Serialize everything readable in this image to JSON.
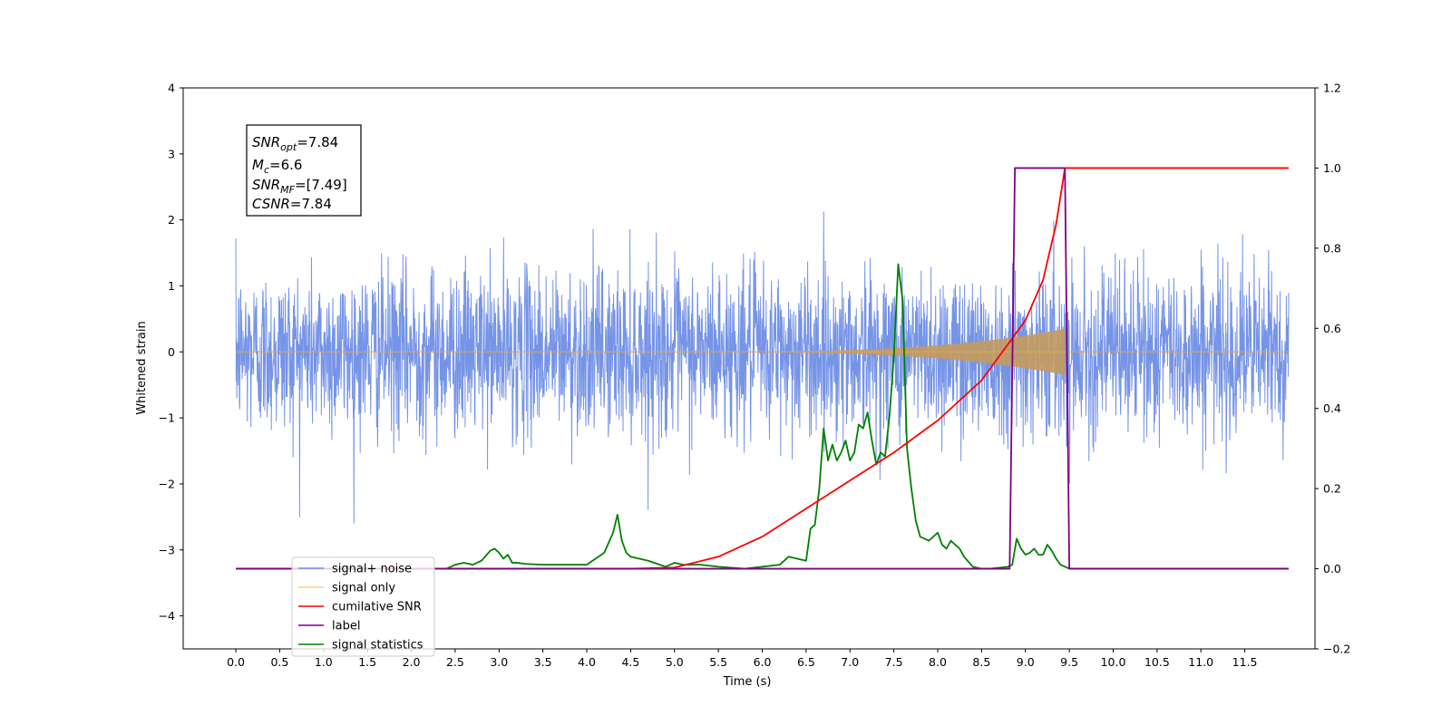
{
  "chart_data": {
    "type": "line",
    "xlabel": "Time (s)",
    "ylabel": "Whitened strain",
    "xlim": [
      -0.6,
      12.3
    ],
    "ylim": [
      -4.5,
      4
    ],
    "ylim_right": [
      -0.2,
      1.2
    ],
    "x_ticks": [
      "0.0",
      "0.5",
      "1.0",
      "1.5",
      "2.0",
      "2.5",
      "3.0",
      "3.5",
      "4.0",
      "4.5",
      "5.0",
      "5.5",
      "6.0",
      "6.5",
      "7.0",
      "7.5",
      "8.0",
      "8.5",
      "9.0",
      "9.5",
      "10.0",
      "10.5",
      "11.0",
      "11.5"
    ],
    "y_ticks_left": [
      "4",
      "3",
      "2",
      "1",
      "0",
      "−1",
      "−2",
      "−3",
      "−4"
    ],
    "y_ticks_right": [
      "1.2",
      "1.0",
      "0.8",
      "0.6",
      "0.4",
      "0.2",
      "0.0",
      "−0.2"
    ],
    "grid": false,
    "legend_placement": "lower-left",
    "annotation": {
      "snr_opt": {
        "base": "SNR",
        "sub": "opt",
        "value": "=7.84"
      },
      "mc": {
        "base": "M",
        "sub": "c",
        "value": "=6.6"
      },
      "snr_mf": {
        "base": "SNR",
        "sub": "MF",
        "value": "=[7.49]"
      },
      "csnr": {
        "base": "CSNR",
        "value": "=7.84"
      }
    },
    "series": [
      {
        "name": "signal+ noise",
        "color": "#6f8ee6",
        "axis": "left",
        "description_x_range": [
          0.0,
          12.0
        ],
        "std": 0.62,
        "max_abs": 3.6
      },
      {
        "name": "signal only",
        "color": "#ffb74a",
        "axis": "left",
        "x_start": 5.2,
        "x_merger": 9.45,
        "peak_amplitude": 0.35
      },
      {
        "name": "cumilative SNR",
        "color": "#ff0000",
        "axis": "right",
        "x": [
          0.0,
          4.5,
          5.0,
          5.5,
          6.0,
          6.5,
          7.0,
          7.5,
          8.0,
          8.5,
          9.0,
          9.2,
          9.35,
          9.45,
          12.0
        ],
        "y": [
          0.0,
          0.0,
          0.003,
          0.03,
          0.08,
          0.15,
          0.22,
          0.29,
          0.37,
          0.47,
          0.62,
          0.72,
          0.86,
          1.0,
          1.0
        ]
      },
      {
        "name": "label",
        "color": "#800080",
        "axis": "right",
        "x": [
          0.0,
          8.82,
          8.88,
          9.45,
          9.5,
          12.0
        ],
        "y": [
          0.0,
          0.0,
          1.0,
          1.0,
          0.0,
          0.0
        ]
      },
      {
        "name": "signal statistics",
        "color": "#008000",
        "axis": "right",
        "x": [
          0.0,
          2.4,
          2.5,
          2.6,
          2.7,
          2.8,
          2.9,
          2.95,
          3.0,
          3.05,
          3.1,
          3.15,
          3.2,
          3.3,
          3.5,
          3.6,
          3.7,
          3.8,
          3.9,
          4.0,
          4.2,
          4.3,
          4.35,
          4.4,
          4.45,
          4.5,
          4.7,
          4.9,
          5.0,
          5.1,
          5.2,
          5.3,
          5.5,
          5.8,
          6.0,
          6.2,
          6.3,
          6.4,
          6.5,
          6.55,
          6.6,
          6.65,
          6.7,
          6.75,
          6.8,
          6.85,
          6.9,
          6.95,
          7.0,
          7.05,
          7.1,
          7.15,
          7.2,
          7.25,
          7.3,
          7.35,
          7.4,
          7.45,
          7.5,
          7.55,
          7.6,
          7.65,
          7.7,
          7.75,
          7.8,
          7.9,
          8.0,
          8.05,
          8.1,
          8.15,
          8.2,
          8.25,
          8.3,
          8.4,
          8.5,
          8.6,
          8.8,
          8.85,
          8.9,
          8.95,
          9.0,
          9.05,
          9.1,
          9.15,
          9.2,
          9.25,
          9.3,
          9.35,
          9.4,
          9.45,
          9.5,
          12.0
        ],
        "y": [
          0.0,
          0.0,
          0.01,
          0.015,
          0.01,
          0.02,
          0.045,
          0.05,
          0.04,
          0.025,
          0.035,
          0.015,
          0.015,
          0.012,
          0.01,
          0.01,
          0.01,
          0.01,
          0.01,
          0.01,
          0.04,
          0.09,
          0.135,
          0.07,
          0.04,
          0.03,
          0.02,
          0.005,
          0.015,
          0.01,
          0.01,
          0.01,
          0.005,
          0.0,
          0.005,
          0.01,
          0.03,
          0.025,
          0.02,
          0.1,
          0.11,
          0.2,
          0.35,
          0.27,
          0.31,
          0.27,
          0.29,
          0.32,
          0.27,
          0.29,
          0.36,
          0.35,
          0.39,
          0.32,
          0.26,
          0.29,
          0.28,
          0.38,
          0.53,
          0.76,
          0.67,
          0.3,
          0.2,
          0.12,
          0.08,
          0.07,
          0.09,
          0.06,
          0.05,
          0.07,
          0.06,
          0.05,
          0.03,
          0.005,
          0.0,
          0.0,
          0.005,
          0.01,
          0.075,
          0.05,
          0.035,
          0.04,
          0.05,
          0.035,
          0.035,
          0.06,
          0.045,
          0.025,
          0.01,
          0.005,
          0.0,
          0.0
        ]
      }
    ]
  }
}
